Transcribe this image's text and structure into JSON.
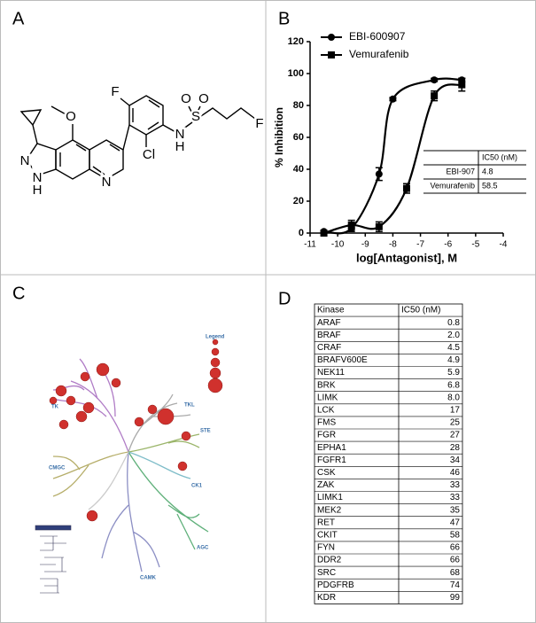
{
  "panel_labels": [
    "A",
    "B",
    "C",
    "D"
  ],
  "structure": {
    "atoms": [
      "F",
      "O",
      "S",
      "O",
      "O",
      "N",
      "H",
      "F",
      "Cl",
      "N",
      "N",
      "H",
      "N"
    ]
  },
  "chart_data": {
    "type": "line",
    "xlabel": "log[Antagonist], M",
    "ylabel": "% Inhibition",
    "xlim": [
      -11,
      -4
    ],
    "xticks": [
      -11,
      -10,
      -9,
      -8,
      -7,
      -6,
      -5,
      -4
    ],
    "ylim": [
      0,
      120
    ],
    "yticks": [
      0,
      20,
      40,
      60,
      80,
      100,
      120
    ],
    "legend": "upper left",
    "series": [
      {
        "name": "EBI-600907",
        "color": "#000000",
        "marker": "circle",
        "x": [
          -10.5,
          -9.5,
          -8.5,
          -8,
          -6.5,
          -5.5
        ],
        "values": [
          1,
          3,
          37,
          84,
          96,
          96
        ],
        "errors": [
          0,
          2,
          4,
          1,
          1,
          1
        ]
      },
      {
        "name": "Vemurafenib",
        "color": "#000000",
        "marker": "square",
        "x": [
          -10.5,
          -9.5,
          -8.5,
          -7.5,
          -6.5,
          -5.5
        ],
        "values": [
          0,
          5,
          4,
          28,
          86,
          93
        ],
        "errors": [
          0,
          3,
          3,
          3,
          3,
          4
        ]
      }
    ],
    "inset_table": {
      "header": "IC50 (nM)",
      "rows": [
        [
          "EBI-907",
          "4.8"
        ],
        [
          "Vemurafenib",
          "58.5"
        ]
      ]
    }
  },
  "kinome": {
    "legend": "Legend",
    "groups": [
      "TK",
      "TKL",
      "STE",
      "CMGC",
      "CK1",
      "AGC",
      "CAMK"
    ]
  },
  "table": {
    "header": [
      "Kinase",
      "IC50 (nM)"
    ],
    "rows": [
      [
        "ARAF",
        "0.8"
      ],
      [
        "BRAF",
        "2.0"
      ],
      [
        "CRAF",
        "4.5"
      ],
      [
        "BRAFV600E",
        "4.9"
      ],
      [
        "NEK11",
        "5.9"
      ],
      [
        "BRK",
        "6.8"
      ],
      [
        "LIMK",
        "8.0"
      ],
      [
        "LCK",
        "17"
      ],
      [
        "FMS",
        "25"
      ],
      [
        "FGR",
        "27"
      ],
      [
        "EPHA1",
        "28"
      ],
      [
        "FGFR1",
        "34"
      ],
      [
        "CSK",
        "46"
      ],
      [
        "ZAK",
        "33"
      ],
      [
        "LIMK1",
        "33"
      ],
      [
        "MEK2",
        "35"
      ],
      [
        "RET",
        "47"
      ],
      [
        "CKIT",
        "58"
      ],
      [
        "FYN",
        "66"
      ],
      [
        "DDR2",
        "66"
      ],
      [
        "SRC",
        "68"
      ],
      [
        "PDGFRB",
        "74"
      ],
      [
        "KDR",
        "99"
      ]
    ]
  }
}
